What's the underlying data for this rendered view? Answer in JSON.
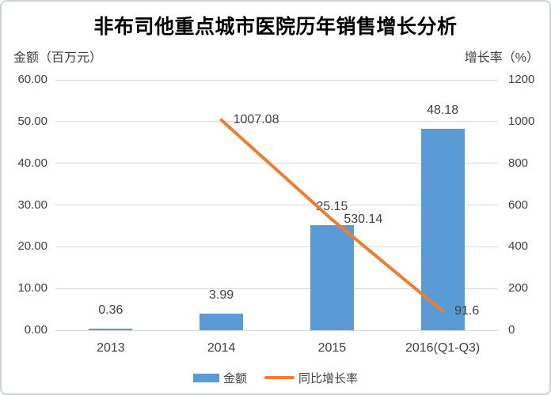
{
  "chart_data": {
    "type": "bar+line combo",
    "title": "非布司他重点城市医院历年销售增长分析",
    "categories": [
      "2013",
      "2014",
      "2015",
      "2016(Q1-Q3)"
    ],
    "series": [
      {
        "name": "金额",
        "type": "bar",
        "axis": "left",
        "values": [
          0.36,
          3.99,
          25.15,
          48.18
        ],
        "labels": [
          "0.36",
          "3.99",
          "25.15",
          "48.18"
        ],
        "color": "#5B9BD5"
      },
      {
        "name": "同比增长率",
        "type": "line",
        "axis": "right",
        "values": [
          null,
          1007.08,
          530.14,
          91.6
        ],
        "labels": [
          null,
          "1007.08",
          "530.14",
          "91.6"
        ],
        "color": "#ED7D31"
      }
    ],
    "left_axis": {
      "label": "金额（百万元）",
      "min": 0,
      "max": 60,
      "ticks": [
        "60.00",
        "50.00",
        "40.00",
        "30.00",
        "20.00",
        "10.00",
        "0.00"
      ]
    },
    "right_axis": {
      "label": "增长率（%）",
      "min": 0,
      "max": 1200,
      "ticks": [
        "1200",
        "1000",
        "800",
        "600",
        "400",
        "200",
        "0"
      ]
    },
    "grid": true,
    "legend_position": "bottom",
    "legend": [
      {
        "label": "金额",
        "swatch": "bar",
        "color": "#5B9BD5"
      },
      {
        "label": "同比增长率",
        "swatch": "line",
        "color": "#ED7D31"
      }
    ],
    "colors": {
      "gridline": "#d9d9d9",
      "text": "#404040",
      "title": "#000000"
    }
  }
}
